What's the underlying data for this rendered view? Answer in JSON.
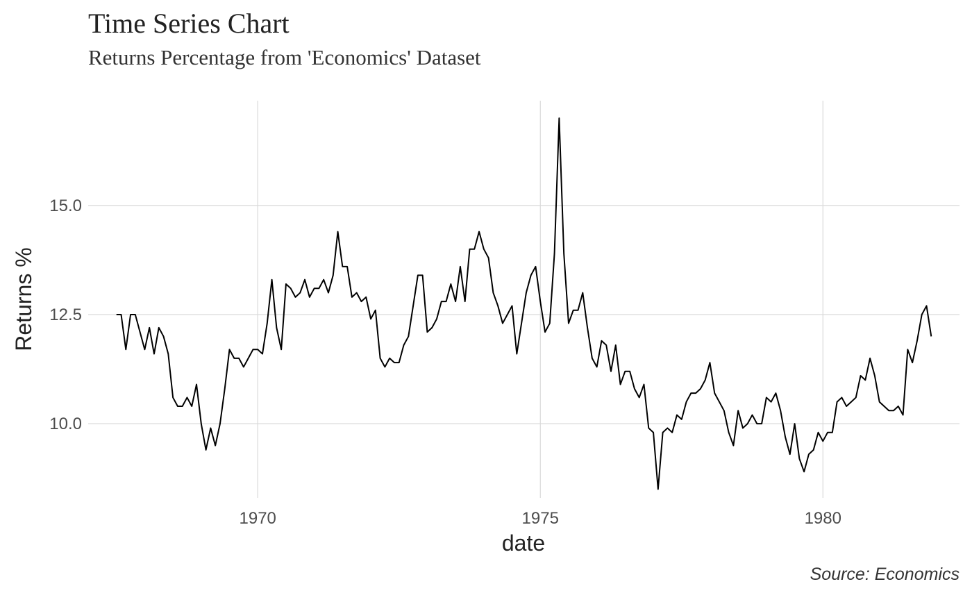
{
  "chart_data": {
    "type": "line",
    "title": "Time Series Chart",
    "subtitle": "Returns Percentage from 'Economics' Dataset",
    "caption": "Source: Economics",
    "xlabel": "date",
    "ylabel": "Returns %",
    "x_ticks": [
      "1970",
      "1975",
      "1980"
    ],
    "y_ticks": [
      "10.0",
      "12.5",
      "15.0"
    ],
    "xlim": [
      "1967-01-01",
      "1982-06-01"
    ],
    "ylim": [
      8.3,
      17.4
    ],
    "grid": true,
    "line_color": "#000000",
    "start": "1967-07-01",
    "series": [
      {
        "values": [
          12.5,
          12.5,
          11.7,
          12.5,
          12.5,
          12.1,
          11.7,
          12.2,
          11.6,
          12.2,
          12.0,
          11.6,
          10.6,
          10.4,
          10.4,
          10.6,
          10.4,
          10.9,
          10.0,
          9.4,
          9.9,
          9.5,
          10.0,
          10.8,
          11.7,
          11.5,
          11.5,
          11.3,
          11.5,
          11.7,
          11.7,
          11.6,
          12.3,
          13.3,
          12.2,
          11.7,
          13.2,
          13.1,
          12.9,
          13.0,
          13.3,
          12.9,
          13.1,
          13.1,
          13.3,
          13.0,
          13.4,
          14.4,
          13.6,
          13.6,
          12.9,
          13.0,
          12.8,
          12.9,
          12.4,
          12.6,
          11.5,
          11.3,
          11.5,
          11.4,
          11.4,
          11.8,
          12.0,
          12.7,
          13.4,
          13.4,
          12.1,
          12.2,
          12.4,
          12.8,
          12.8,
          13.2,
          12.8,
          13.6,
          12.8,
          14.0,
          14.0,
          14.4,
          14.0,
          13.8,
          13.0,
          12.7,
          12.3,
          12.5,
          12.7,
          11.6,
          12.3,
          13.0,
          13.4,
          13.6,
          12.8,
          12.1,
          12.3,
          13.9,
          17.0,
          13.9,
          12.3,
          12.6,
          12.6,
          13.0,
          12.2,
          11.5,
          11.3,
          11.9,
          11.8,
          11.2,
          11.8,
          10.9,
          11.2,
          11.2,
          10.8,
          10.6,
          10.9,
          9.9,
          9.8,
          8.5,
          9.8,
          9.9,
          9.8,
          10.2,
          10.1,
          10.5,
          10.7,
          10.7,
          10.8,
          11.0,
          11.4,
          10.7,
          10.5,
          10.3,
          9.8,
          9.5,
          10.3,
          9.9,
          10.0,
          10.2,
          10.0,
          10.0,
          10.6,
          10.5,
          10.7,
          10.3,
          9.7,
          9.3,
          10.0,
          9.2,
          8.9,
          9.3,
          9.4,
          9.8,
          9.6,
          9.8,
          9.8,
          10.5,
          10.6,
          10.4,
          10.5,
          10.6,
          11.1,
          11.0,
          11.5,
          11.1,
          10.5,
          10.4,
          10.3,
          10.3,
          10.4,
          10.2,
          11.7,
          11.4,
          11.9,
          12.5,
          12.7,
          12.0
        ]
      }
    ]
  }
}
